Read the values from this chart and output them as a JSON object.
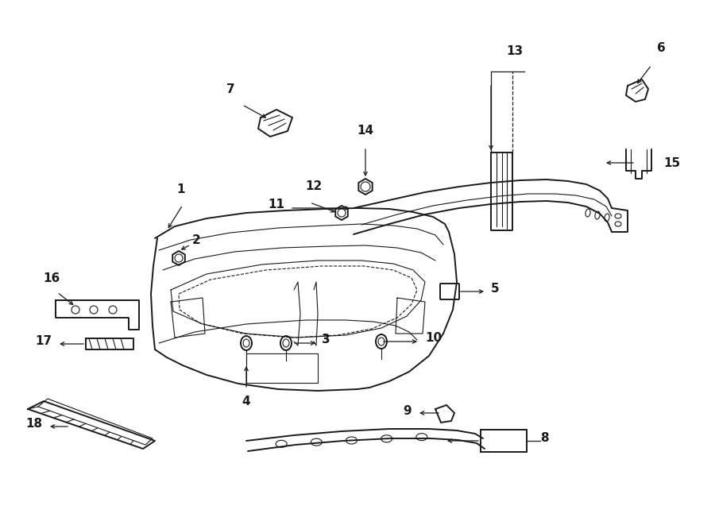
{
  "bg_color": "#ffffff",
  "line_color": "#1a1a1a",
  "fig_width": 9.0,
  "fig_height": 6.61,
  "lw_main": 1.4,
  "lw_thin": 0.8,
  "lw_med": 1.1
}
